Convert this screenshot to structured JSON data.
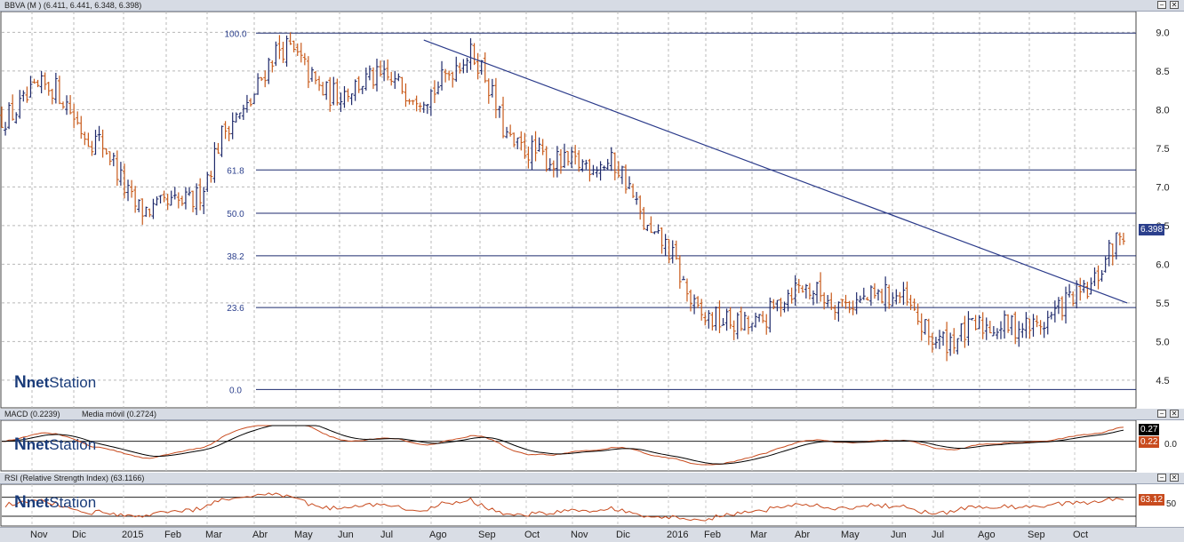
{
  "main_panel": {
    "title": "BBVA (M ) (6.411, 6.441, 6.348, 6.398)",
    "last_price": "6.398",
    "logo_text_net": "net",
    "logo_text_station": "Station",
    "logo_mark": "N"
  },
  "macd_panel": {
    "title": "MACD (0.2239)",
    "title2": "Media móvil (0.2724)",
    "signal_tag": "0.27",
    "macd_tag": "0.22",
    "zero_label": "0.0"
  },
  "rsi_panel": {
    "title": "RSI (Relative Strength Index) (63.1166)",
    "tag": "63.12",
    "level_label": "50"
  },
  "window_buttons": {
    "minimize": "−",
    "close": "✕"
  },
  "colors": {
    "bar": "#1f2a6b",
    "bar_down": "#c85a1a",
    "trendline": "#2a3a8a",
    "fib_line": "#1c2a6e",
    "macd": "#c84b1e",
    "signal": "#000000",
    "rsi": "#c84b1e",
    "price_tag": "#2b3f8c"
  },
  "chart_data": [
    {
      "type": "line",
      "series_style": "ohlc-bars",
      "x_axis_labels": [
        "Nov",
        "Dic",
        "2015",
        "Feb",
        "Mar",
        "Abr",
        "May",
        "Jun",
        "Jul",
        "Ago",
        "Sep",
        "Oct",
        "Nov",
        "Dic",
        "2016",
        "Feb",
        "Mar",
        "Abr",
        "May",
        "Jun",
        "Jul",
        "Ago",
        "Sep",
        "Oct"
      ],
      "ylim": [
        4.2,
        9.2
      ],
      "yticks": [
        "9.0",
        "8.5",
        "8.0",
        "7.5",
        "7.0",
        "6.5",
        "6.0",
        "5.5",
        "5.0",
        "4.5"
      ],
      "grid": true,
      "x": [
        "Oct 2014",
        "Nov 2014",
        "Dic 2014",
        "Ene 2015",
        "Feb 2015",
        "Mar 2015",
        "Abr 2015",
        "May 2015",
        "Jun 2015",
        "Jul 2015",
        "Ago 2015",
        "Sep 2015",
        "Oct 2015",
        "Nov 2015",
        "Dic 2015",
        "Ene 2016",
        "Feb 2016",
        "Mar 2016",
        "Abr 2016",
        "May 2016",
        "Jun 2016",
        "Jul 2016",
        "Ago 2016",
        "Sep 2016",
        "Oct 2016"
      ],
      "series": [
        {
          "values": [
            7.9,
            8.3,
            7.6,
            6.7,
            6.8,
            7.9,
            8.8,
            8.2,
            8.4,
            8.2,
            8.7,
            7.5,
            7.3,
            7.3,
            6.3,
            5.3,
            5.2,
            5.7,
            5.5,
            5.6,
            5.0,
            5.2,
            5.2,
            5.6,
            6.4
          ]
        }
      ],
      "fibonacci": {
        "levels": [
          "100.0",
          "61.8",
          "50.0",
          "38.2",
          "23.6",
          "0.0"
        ],
        "prices": [
          8.99,
          7.22,
          6.66,
          6.11,
          5.44,
          4.38
        ]
      },
      "trendline": {
        "from": {
          "x": "Jul 2015",
          "y": 8.9
        },
        "to": {
          "x": "Oct 2016",
          "y": 5.5
        }
      }
    },
    {
      "type": "line",
      "ylim": [
        -0.6,
        0.4
      ],
      "yticks": [
        "0.0"
      ],
      "last_values": [
        0.27,
        0.22
      ]
    },
    {
      "type": "line",
      "ylim": [
        15,
        90
      ],
      "yticks": [
        "50"
      ],
      "last_value": 63.12
    }
  ]
}
